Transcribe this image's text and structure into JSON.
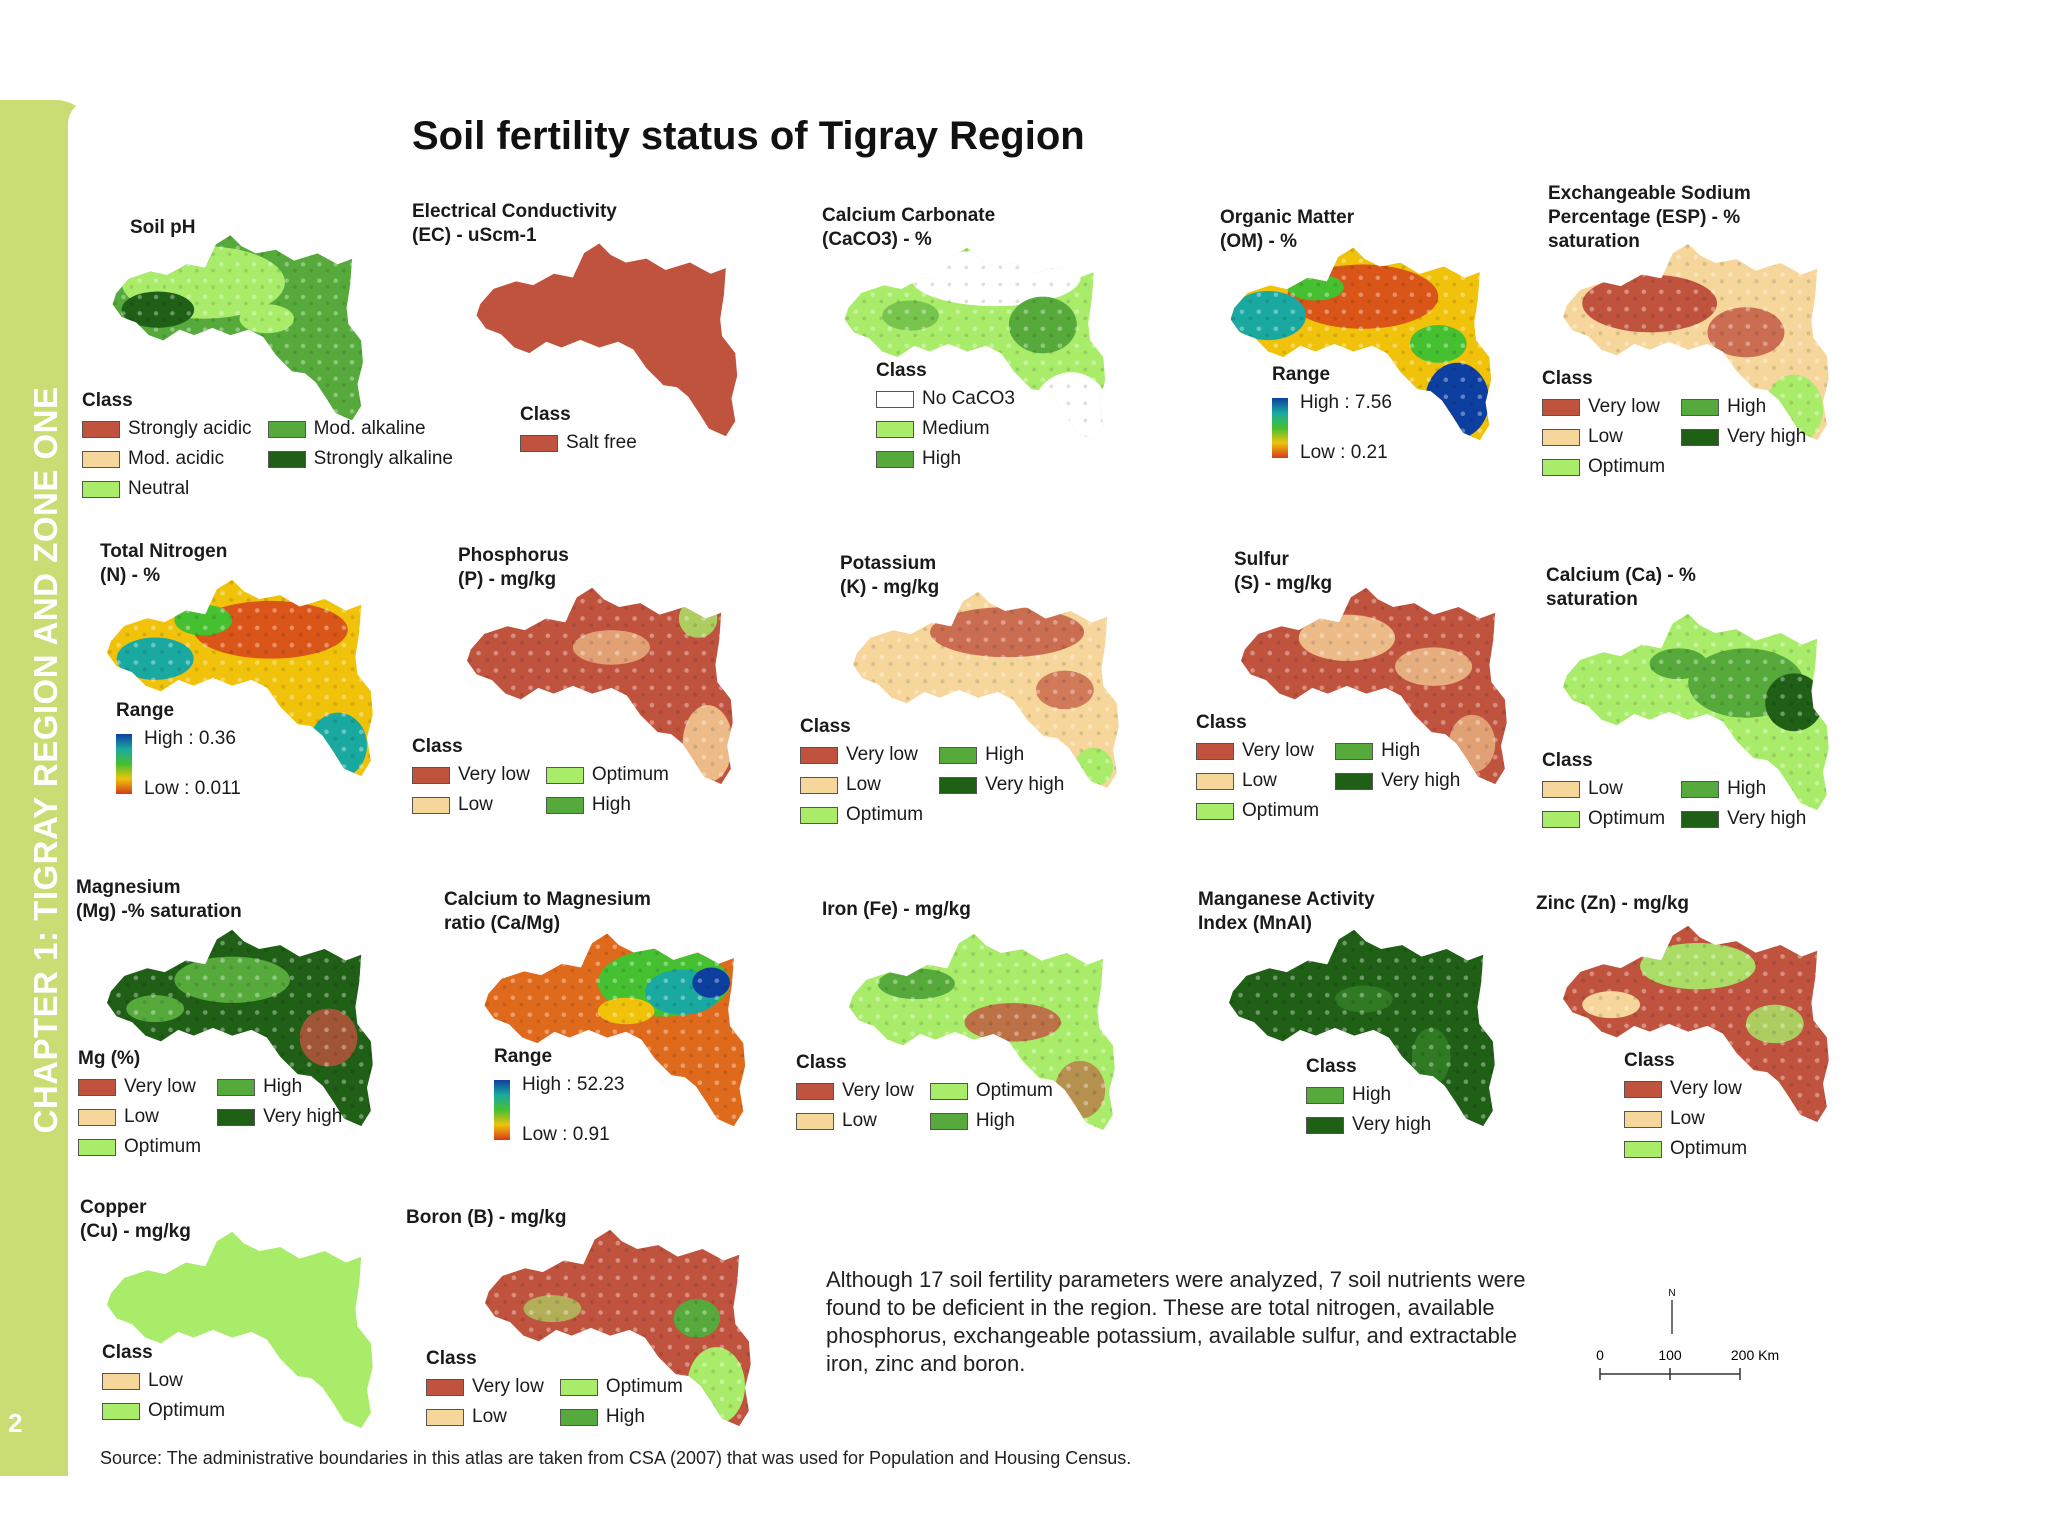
{
  "sidebar": {
    "chapter": "CHAPTER 1: TIGRAY REGION AND ZONE ONE",
    "page_number": "2",
    "color": "#c9dd74"
  },
  "title": "Soil fertility status of Tigray Region",
  "colors": {
    "very_low": "#c0533e",
    "low": "#f6d69a",
    "optimum": "#a9ec6a",
    "high": "#56aa3c",
    "very_high": "#1f5f16",
    "no_caco3": "#ffffff",
    "medium": "#a9ec6a"
  },
  "panels": {
    "ph": {
      "title": "Soil pH",
      "legend_title": "Class",
      "items": [
        {
          "label": "Strongly acidic",
          "color": "#c0533e"
        },
        {
          "label": "Mod. alkaline",
          "color": "#56aa3c"
        },
        {
          "label": "Mod. acidic",
          "color": "#f6d69a"
        },
        {
          "label": "Strongly alkaline",
          "color": "#1f5f16"
        },
        {
          "label": "Neutral",
          "color": "#a9ec6a"
        }
      ]
    },
    "ec": {
      "title": "Electrical Conductivity\n(EC) - uScm-1",
      "legend_title": "Class",
      "items": [
        {
          "label": "Salt free",
          "color": "#c0533e"
        }
      ]
    },
    "caco3": {
      "title": "Calcium Carbonate\n(CaCO3) - %",
      "legend_title": "Class",
      "items": [
        {
          "label": "No CaCO3",
          "color": "#ffffff"
        },
        {
          "label": "Medium",
          "color": "#a9ec6a"
        },
        {
          "label": "High",
          "color": "#56aa3c"
        }
      ]
    },
    "om": {
      "title": "Organic Matter\n(OM) - %",
      "legend_title": "Range",
      "high": "High : 7.56",
      "low": "Low : 0.21"
    },
    "esp": {
      "title": "Exchangeable Sodium\nPercentage (ESP)  - %\nsaturation",
      "legend_title": "Class",
      "items": [
        {
          "label": "Very low",
          "color": "#c0533e"
        },
        {
          "label": "High",
          "color": "#56aa3c"
        },
        {
          "label": "Low",
          "color": "#f6d69a"
        },
        {
          "label": "Very high",
          "color": "#1f5f16"
        },
        {
          "label": "Optimum",
          "color": "#a9ec6a"
        }
      ]
    },
    "n": {
      "title": "Total Nitrogen\n(N) - %",
      "legend_title": "Range",
      "high": "High : 0.36",
      "low": "Low : 0.011"
    },
    "p": {
      "title": "Phosphorus\n(P) - mg/kg",
      "legend_title": "Class",
      "items": [
        {
          "label": "Very low",
          "color": "#c0533e"
        },
        {
          "label": "Optimum",
          "color": "#a9ec6a"
        },
        {
          "label": "Low",
          "color": "#f6d69a"
        },
        {
          "label": "High",
          "color": "#56aa3c"
        }
      ]
    },
    "k": {
      "title": "Potassium\n(K) - mg/kg",
      "legend_title": "Class",
      "items": [
        {
          "label": "Very low",
          "color": "#c0533e"
        },
        {
          "label": "High",
          "color": "#56aa3c"
        },
        {
          "label": "Low",
          "color": "#f6d69a"
        },
        {
          "label": "Very high",
          "color": "#1f5f16"
        },
        {
          "label": "Optimum",
          "color": "#a9ec6a"
        }
      ]
    },
    "s": {
      "title": "Sulfur\n(S) - mg/kg",
      "legend_title": "Class",
      "items": [
        {
          "label": "Very low",
          "color": "#c0533e"
        },
        {
          "label": "High",
          "color": "#56aa3c"
        },
        {
          "label": "Low",
          "color": "#f6d69a"
        },
        {
          "label": "Very high",
          "color": "#1f5f16"
        },
        {
          "label": "Optimum",
          "color": "#a9ec6a"
        }
      ]
    },
    "ca": {
      "title": "Calcium (Ca)  - %\nsaturation",
      "legend_title": "Class",
      "items": [
        {
          "label": "Low",
          "color": "#f6d69a"
        },
        {
          "label": "High",
          "color": "#56aa3c"
        },
        {
          "label": "Optimum",
          "color": "#a9ec6a"
        },
        {
          "label": "Very high",
          "color": "#1f5f16"
        }
      ]
    },
    "mg": {
      "title": "Magnesium\n(Mg) -% saturation",
      "legend_title": "Mg (%)",
      "items": [
        {
          "label": "Very low",
          "color": "#c0533e"
        },
        {
          "label": "High",
          "color": "#56aa3c"
        },
        {
          "label": "Low",
          "color": "#f6d69a"
        },
        {
          "label": "Very high",
          "color": "#1f5f16"
        },
        {
          "label": "Optimum",
          "color": "#a9ec6a"
        }
      ]
    },
    "camg": {
      "title": "Calcium to Magnesium\nratio (Ca/Mg)",
      "legend_title": "Range",
      "high": "High : 52.23",
      "low": "Low : 0.91"
    },
    "fe": {
      "title": "Iron (Fe) - mg/kg",
      "legend_title": "Class",
      "items": [
        {
          "label": "Very low",
          "color": "#c0533e"
        },
        {
          "label": "Optimum",
          "color": "#a9ec6a"
        },
        {
          "label": "Low",
          "color": "#f6d69a"
        },
        {
          "label": "High",
          "color": "#56aa3c"
        }
      ]
    },
    "mnai": {
      "title": "Manganese Activity\nIndex (MnAI)",
      "legend_title": "Class",
      "items": [
        {
          "label": "High",
          "color": "#56aa3c"
        },
        {
          "label": "Very high",
          "color": "#1f5f16"
        }
      ]
    },
    "zn": {
      "title": "Zinc (Zn) - mg/kg",
      "legend_title": "Class",
      "items": [
        {
          "label": "Very low",
          "color": "#c0533e"
        },
        {
          "label": "Low",
          "color": "#f6d69a"
        },
        {
          "label": "Optimum",
          "color": "#a9ec6a"
        }
      ]
    },
    "cu": {
      "title": "Copper\n(Cu) - mg/kg",
      "legend_title": "Class",
      "items": [
        {
          "label": "Low",
          "color": "#f6d69a"
        },
        {
          "label": "Optimum",
          "color": "#a9ec6a"
        }
      ]
    },
    "b": {
      "title": "Boron (B) - mg/kg",
      "legend_title": "Class",
      "items": [
        {
          "label": "Very low",
          "color": "#c0533e"
        },
        {
          "label": "Optimum",
          "color": "#a9ec6a"
        },
        {
          "label": "Low",
          "color": "#f6d69a"
        },
        {
          "label": "High",
          "color": "#56aa3c"
        }
      ]
    }
  },
  "note": "Although 17 soil fertility parameters were analyzed, 7 soil nutrients were found to be deficient in the region. These are total nitrogen, available phosphorus, exchangeable potassium, available sulfur, and extractable iron, zinc and boron.",
  "scale": {
    "north": "N",
    "ticks": [
      "0",
      "100",
      "200 Km"
    ]
  },
  "source": "Source: The administrative boundaries in this atlas are taken from CSA (2007) that was used for Population and Housing Census."
}
